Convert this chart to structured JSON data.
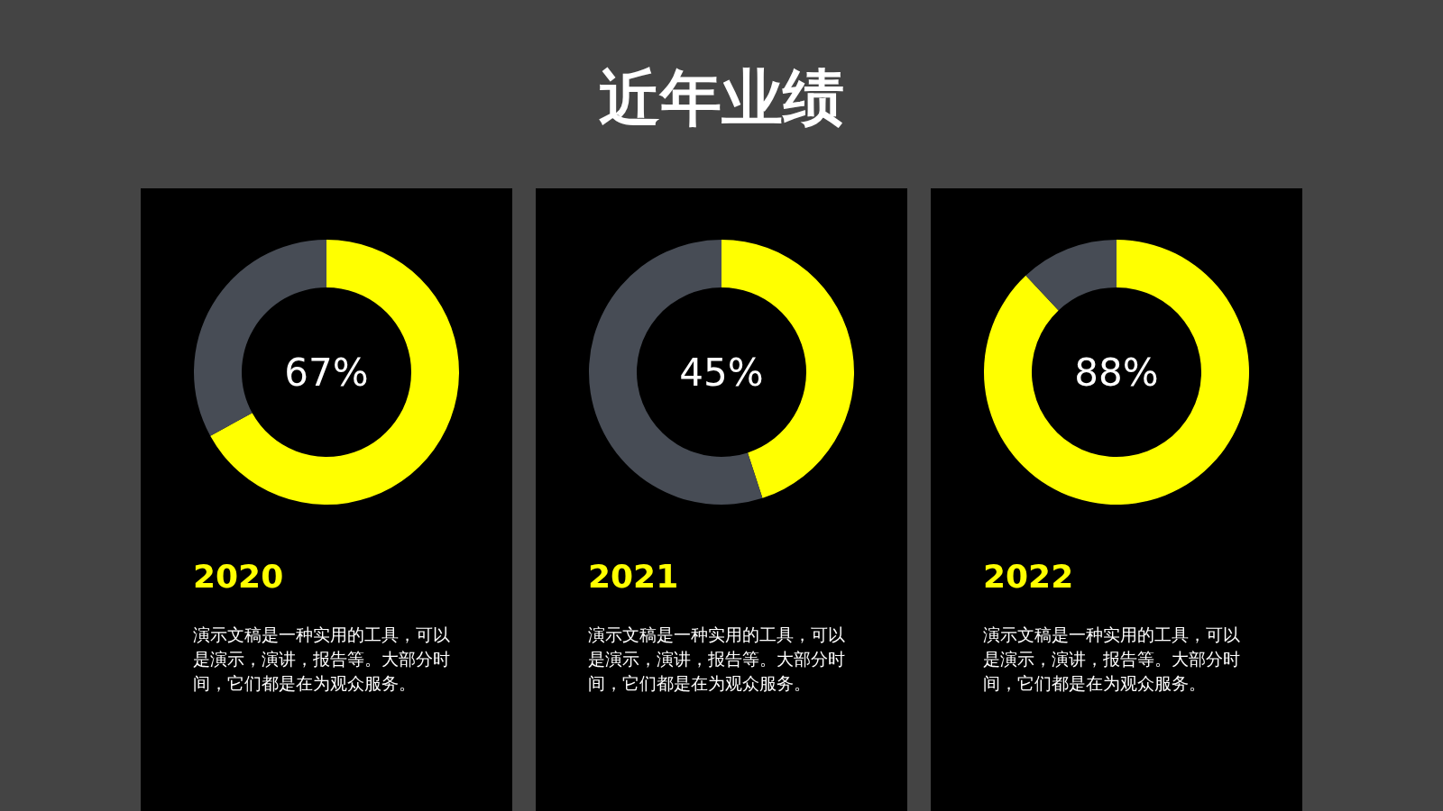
{
  "chart_data": [
    {
      "type": "other",
      "title": "近年业绩"
    },
    {
      "type": "donut",
      "xlabel": "2020",
      "categories": [
        null,
        null
      ],
      "values": [
        67,
        33
      ],
      "colors": [
        "#ffff00",
        "#474c55"
      ],
      "annotations": [
        "67%",
        "演示文稿是一种实用的工具，可以是演示，演讲，报告等。大部分时间，它们都是在为观众服务。"
      ]
    },
    {
      "type": "donut",
      "xlabel": "2021",
      "categories": [
        null,
        null
      ],
      "values": [
        45,
        55
      ],
      "colors": [
        "#ffff00",
        "#474c55"
      ],
      "annotations": [
        "45%",
        "演示文稿是一种实用的工具，可以是演示，演讲，报告等。大部分时间，它们都是在为观众服务。"
      ]
    },
    {
      "type": "donut",
      "xlabel": "2022",
      "categories": [
        null,
        null
      ],
      "values": [
        88,
        12
      ],
      "colors": [
        "#ffff00",
        "#474c55"
      ],
      "annotations": [
        "88%",
        "演示文稿是一种实用的工具，可以是演示，演讲，报告等。大部分时间，它们都是在为观众服务。"
      ]
    }
  ]
}
